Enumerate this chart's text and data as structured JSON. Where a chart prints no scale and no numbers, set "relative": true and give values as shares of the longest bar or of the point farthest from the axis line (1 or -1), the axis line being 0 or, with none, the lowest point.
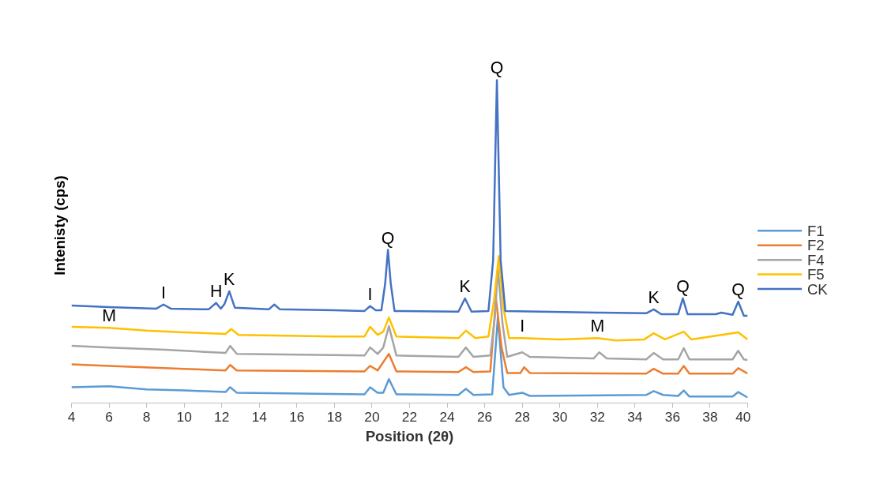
{
  "chart_data": {
    "type": "line",
    "relative": true,
    "xlabel": "Position (2θ)",
    "ylabel": "Intenisty (cps)",
    "xlim": [
      4,
      40
    ],
    "xticks": [
      4,
      6,
      8,
      10,
      12,
      14,
      16,
      18,
      20,
      22,
      24,
      26,
      28,
      30,
      32,
      34,
      36,
      38,
      40
    ],
    "grid": false,
    "legend": "right",
    "marker": "none",
    "line_style": "solid",
    "series": [
      {
        "name": "F1",
        "color": "#5b9bd5",
        "x": [
          4,
          6,
          8,
          10,
          12.2,
          12.45,
          12.8,
          19.6,
          19.9,
          20.3,
          20.6,
          20.9,
          21.3,
          24.6,
          25,
          25.4,
          26.4,
          26.7,
          27.0,
          27.3,
          28,
          28.4,
          34.6,
          35,
          35.5,
          36.3,
          36.6,
          36.9,
          39.2,
          39.5,
          40
        ],
        "values": [
          0.049,
          0.052,
          0.042,
          0.039,
          0.034,
          0.049,
          0.032,
          0.027,
          0.049,
          0.032,
          0.032,
          0.074,
          0.027,
          0.025,
          0.044,
          0.025,
          0.027,
          0.265,
          0.049,
          0.025,
          0.032,
          0.022,
          0.025,
          0.037,
          0.025,
          0.022,
          0.039,
          0.02,
          0.02,
          0.034,
          0.017
        ]
      },
      {
        "name": "F2",
        "color": "#ed7d31",
        "x": [
          4,
          6,
          10,
          12.2,
          12.45,
          12.8,
          19.6,
          19.9,
          20.3,
          20.9,
          21.3,
          24.6,
          25,
          25.4,
          26.3,
          26.6,
          26.9,
          27.2,
          27.9,
          28.1,
          28.4,
          34.6,
          35,
          35.5,
          36.3,
          36.6,
          36.9,
          39.2,
          39.5,
          40
        ],
        "values": [
          0.12,
          0.115,
          0.106,
          0.101,
          0.118,
          0.101,
          0.098,
          0.115,
          0.101,
          0.152,
          0.098,
          0.096,
          0.111,
          0.096,
          0.098,
          0.324,
          0.172,
          0.093,
          0.093,
          0.111,
          0.093,
          0.091,
          0.106,
          0.091,
          0.091,
          0.115,
          0.091,
          0.091,
          0.108,
          0.091
        ]
      },
      {
        "name": "F4",
        "color": "#a5a5a5",
        "x": [
          4,
          6,
          9,
          12.2,
          12.45,
          12.8,
          19.6,
          19.9,
          20.3,
          20.6,
          20.9,
          21.3,
          24.6,
          25,
          25.4,
          26.3,
          26.55,
          26.7,
          26.95,
          27.2,
          28,
          28.4,
          31.8,
          32.1,
          32.5,
          34.6,
          35,
          35.5,
          36.3,
          36.6,
          36.9,
          39.2,
          39.5,
          39.8,
          40
        ],
        "values": [
          0.177,
          0.172,
          0.165,
          0.155,
          0.177,
          0.152,
          0.147,
          0.172,
          0.152,
          0.172,
          0.238,
          0.147,
          0.143,
          0.172,
          0.143,
          0.147,
          0.27,
          0.418,
          0.246,
          0.143,
          0.157,
          0.143,
          0.138,
          0.157,
          0.138,
          0.135,
          0.155,
          0.135,
          0.135,
          0.17,
          0.135,
          0.135,
          0.162,
          0.135,
          0.133
        ]
      },
      {
        "name": "F5",
        "color": "#ffc000",
        "x": [
          4,
          6,
          8,
          10,
          12.2,
          12.5,
          12.9,
          18,
          19.6,
          19.9,
          20.3,
          20.6,
          20.9,
          21.3,
          24.6,
          25,
          25.5,
          26.2,
          26.5,
          26.75,
          27.0,
          27.3,
          28,
          30,
          32,
          33,
          34.5,
          35,
          35.6,
          36.6,
          37,
          39.5,
          40
        ],
        "values": [
          0.236,
          0.233,
          0.224,
          0.219,
          0.214,
          0.229,
          0.211,
          0.206,
          0.206,
          0.236,
          0.211,
          0.221,
          0.265,
          0.206,
          0.201,
          0.224,
          0.201,
          0.206,
          0.319,
          0.455,
          0.295,
          0.201,
          0.201,
          0.197,
          0.201,
          0.194,
          0.197,
          0.216,
          0.197,
          0.221,
          0.197,
          0.219,
          0.197
        ]
      },
      {
        "name": "CK",
        "color": "#4472c4",
        "x": [
          4,
          6,
          8.5,
          8.9,
          9.3,
          11.3,
          11.7,
          11.95,
          12.15,
          12.4,
          12.7,
          14.5,
          14.8,
          15.1,
          18,
          19.6,
          19.9,
          20.2,
          20.5,
          20.7,
          20.85,
          21.0,
          21.2,
          24.6,
          24.95,
          25.3,
          26.2,
          26.45,
          26.65,
          26.85,
          27.1,
          29,
          32,
          34.6,
          35,
          35.4,
          36.3,
          36.55,
          36.8,
          38.3,
          38.6,
          39.2,
          39.5,
          39.8,
          40
        ],
        "values": [
          0.302,
          0.297,
          0.292,
          0.305,
          0.292,
          0.29,
          0.31,
          0.292,
          0.307,
          0.346,
          0.295,
          0.29,
          0.305,
          0.29,
          0.287,
          0.285,
          0.3,
          0.287,
          0.287,
          0.369,
          0.474,
          0.369,
          0.285,
          0.283,
          0.324,
          0.283,
          0.285,
          0.442,
          1,
          0.442,
          0.285,
          0.283,
          0.28,
          0.278,
          0.29,
          0.275,
          0.275,
          0.324,
          0.275,
          0.275,
          0.28,
          0.273,
          0.314,
          0.27,
          0.27
        ]
      }
    ],
    "annotations": [
      {
        "text": "M",
        "x": 6,
        "y": 0.233
      },
      {
        "text": "I",
        "x": 8.9,
        "y": 0.305
      },
      {
        "text": "H",
        "x": 11.7,
        "y": 0.31
      },
      {
        "text": "K",
        "x": 12.4,
        "y": 0.346
      },
      {
        "text": "I",
        "x": 19.9,
        "y": 0.3
      },
      {
        "text": "Q",
        "x": 20.85,
        "y": 0.474
      },
      {
        "text": "K",
        "x": 24.95,
        "y": 0.324
      },
      {
        "text": "Q",
        "x": 26.65,
        "y": 1
      },
      {
        "text": "I",
        "x": 28,
        "y": 0.201
      },
      {
        "text": "M",
        "x": 32,
        "y": 0.201
      },
      {
        "text": "K",
        "x": 35,
        "y": 0.29
      },
      {
        "text": "Q",
        "x": 36.55,
        "y": 0.324
      },
      {
        "text": "Q",
        "x": 39.5,
        "y": 0.314
      }
    ]
  }
}
